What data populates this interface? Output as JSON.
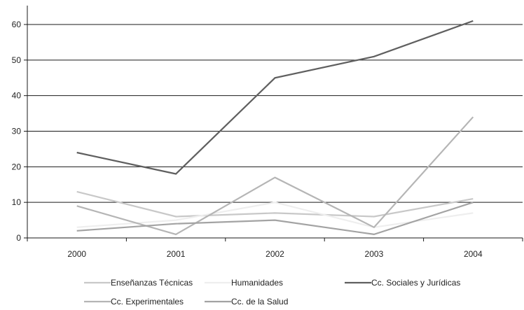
{
  "chart_data": {
    "type": "line",
    "title": "",
    "xlabel": "",
    "ylabel": "",
    "categories": [
      "2000",
      "2001",
      "2002",
      "2003",
      "2004"
    ],
    "ylim": [
      0,
      65
    ],
    "yticks": [
      0,
      10,
      20,
      30,
      40,
      50,
      60
    ],
    "grid": "horizontal",
    "legend_position": "bottom",
    "series": [
      {
        "name": "Enseñanzas Técnicas",
        "values": [
          13,
          6,
          7,
          6,
          11
        ],
        "color": "#c8c8c8"
      },
      {
        "name": "Humanidades",
        "values": [
          3,
          5,
          10,
          3,
          7
        ],
        "color": "#eeeeee"
      },
      {
        "name": "Cc. Sociales y Jurídicas",
        "values": [
          24,
          18,
          45,
          51,
          61
        ],
        "color": "#5f5f5f"
      },
      {
        "name": "Cc. Experimentales",
        "values": [
          9,
          1,
          17,
          3,
          34
        ],
        "color": "#b5b5b5"
      },
      {
        "name": "Cc. de la Salud",
        "values": [
          2,
          4,
          5,
          1,
          10
        ],
        "color": "#a3a3a3"
      }
    ]
  }
}
